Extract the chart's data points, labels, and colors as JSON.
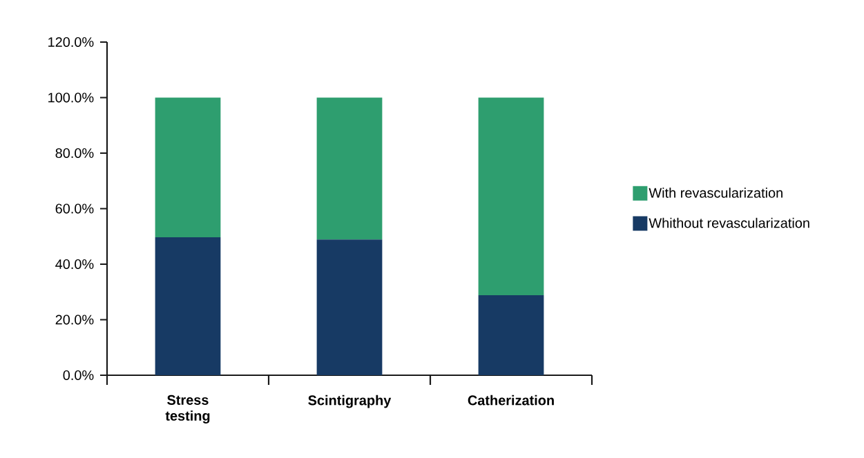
{
  "chart_data": {
    "type": "bar",
    "stacked": true,
    "categories": [
      "Stress testing",
      "Scintigraphy",
      "Catherization"
    ],
    "series": [
      {
        "name": "Whithout revascularization",
        "color": "#173a64",
        "values": [
          49.7,
          48.9,
          28.8
        ]
      },
      {
        "name": "With revascularization",
        "color": "#2e9e6f",
        "values": [
          50.3,
          51.1,
          71.2
        ]
      }
    ],
    "ylim": [
      0,
      120
    ],
    "yticks": [
      {
        "value": 0,
        "label": "0.0%"
      },
      {
        "value": 20,
        "label": "20.0%"
      },
      {
        "value": 40,
        "label": "40.0%"
      },
      {
        "value": 60,
        "label": "60.0%"
      },
      {
        "value": 80,
        "label": "80.0%"
      },
      {
        "value": 100,
        "label": "100.0%"
      },
      {
        "value": 120,
        "label": "120.0%"
      }
    ],
    "grid": false,
    "legend": "right"
  }
}
